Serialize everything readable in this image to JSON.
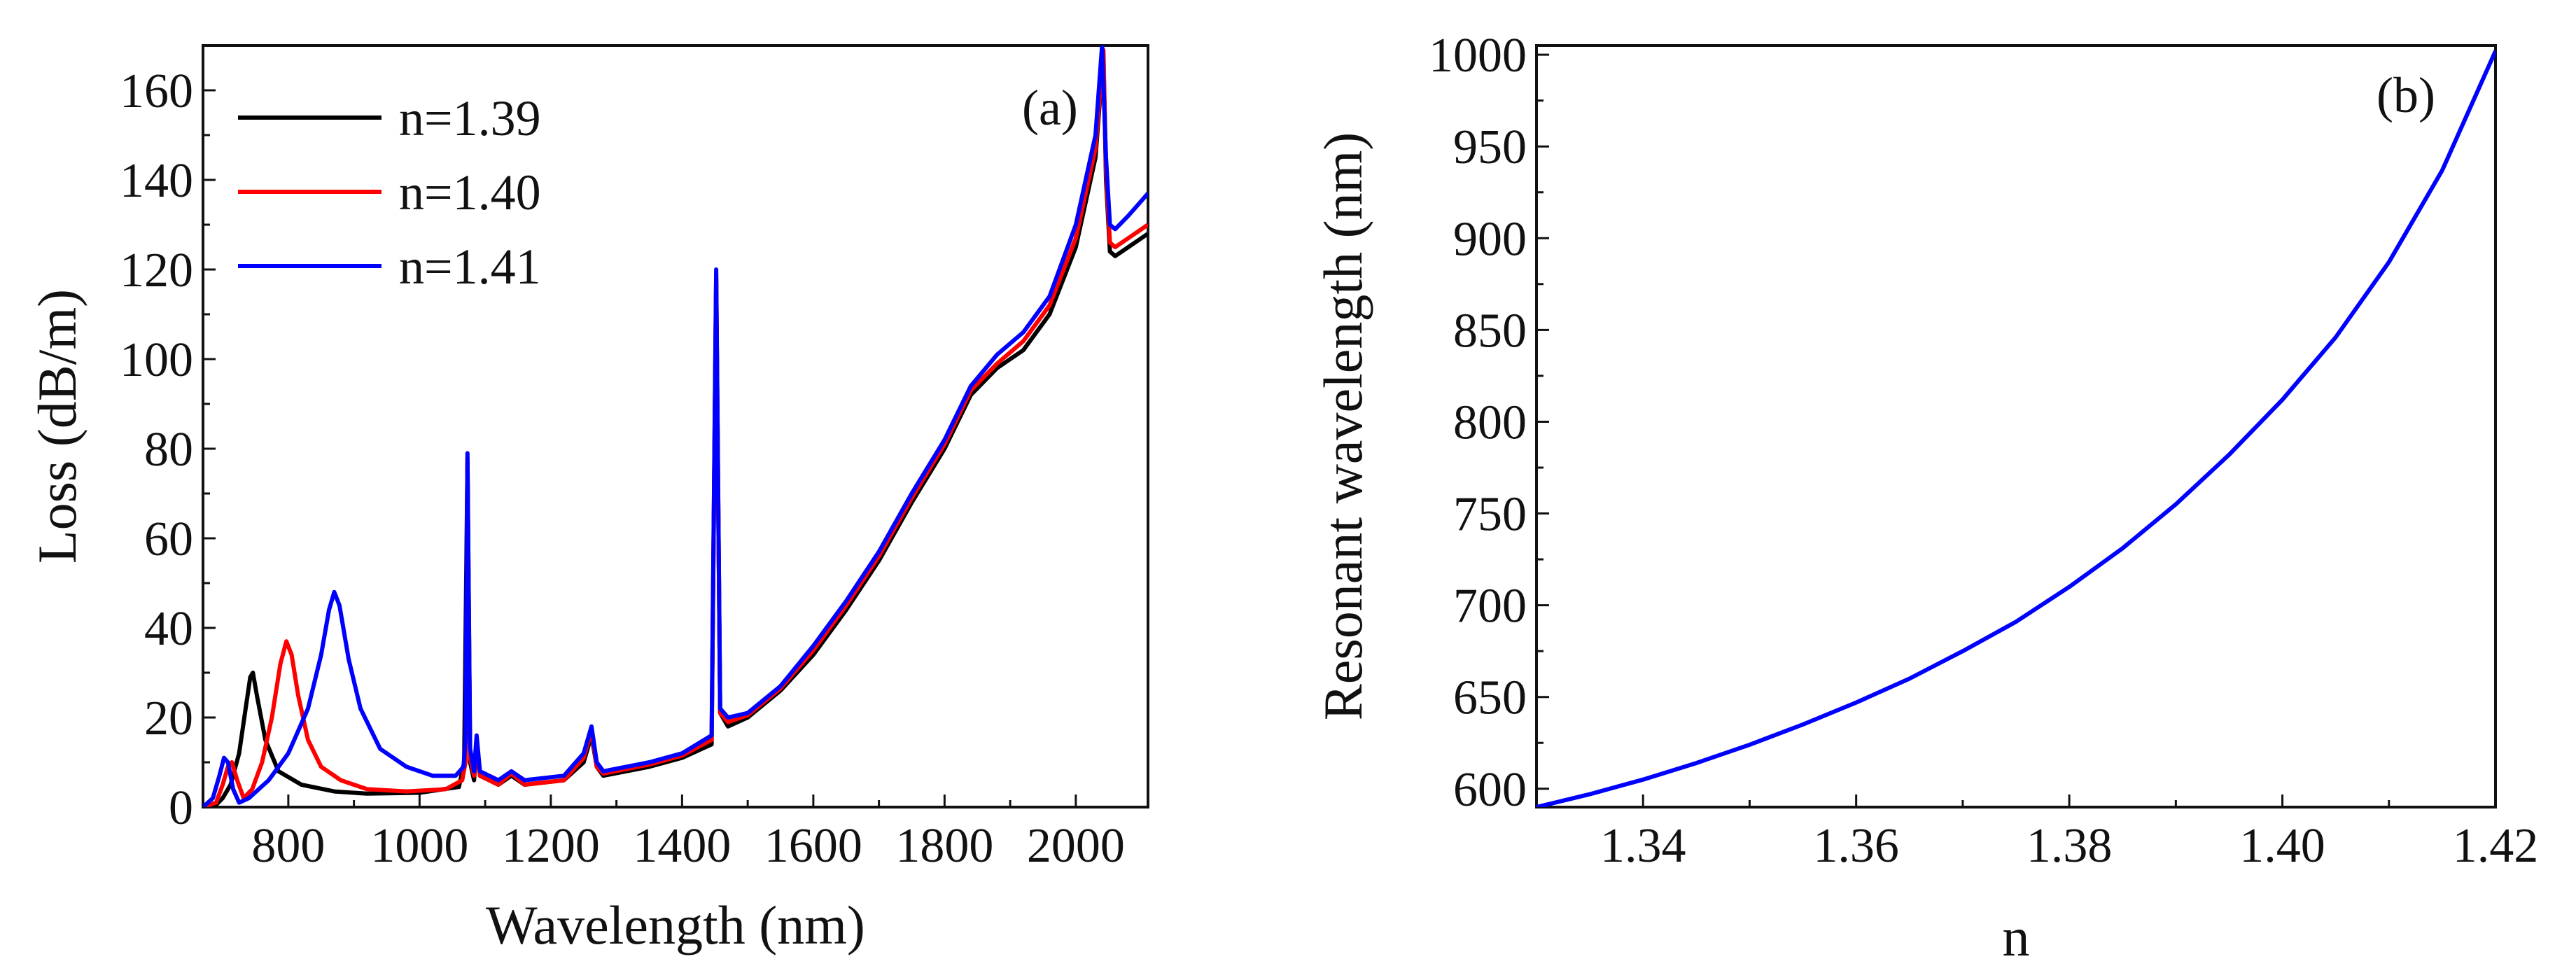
{
  "chart_data": [
    {
      "panel": "(a)",
      "type": "line",
      "xlabel": "Wavelength (nm)",
      "ylabel": "Loss (dB/m)",
      "xlim": [
        670,
        2110
      ],
      "ylim": [
        0,
        170
      ],
      "xticks": [
        800,
        1000,
        1200,
        1400,
        1600,
        1800,
        2000
      ],
      "xtick_labels": [
        "800",
        "1000",
        "1200",
        "1400",
        "1600",
        "1800",
        "2000"
      ],
      "yticks": [
        0,
        20,
        40,
        60,
        80,
        100,
        120,
        140,
        160
      ],
      "ytick_labels": [
        "0",
        "20",
        "40",
        "60",
        "80",
        "100",
        "120",
        "140",
        "160"
      ],
      "grid": false,
      "legend_position": "top-left",
      "series": [
        {
          "name": "n=1.39",
          "color": "#000000",
          "points": [
            [
              670,
              0
            ],
            [
              690,
              0.5
            ],
            [
              700,
              2
            ],
            [
              712,
              5
            ],
            [
              725,
              12
            ],
            [
              735,
              22
            ],
            [
              742,
              29
            ],
            [
              746,
              30
            ],
            [
              752,
              25
            ],
            [
              765,
              15
            ],
            [
              785,
              8
            ],
            [
              820,
              5
            ],
            [
              870,
              3.5
            ],
            [
              920,
              3
            ],
            [
              1000,
              3.2
            ],
            [
              1060,
              4.5
            ],
            [
              1068,
              10
            ],
            [
              1073,
              77
            ],
            [
              1077,
              10
            ],
            [
              1083,
              6
            ],
            [
              1087,
              14
            ],
            [
              1092,
              7
            ],
            [
              1120,
              5
            ],
            [
              1140,
              7
            ],
            [
              1160,
              5
            ],
            [
              1220,
              6
            ],
            [
              1250,
              10
            ],
            [
              1262,
              16
            ],
            [
              1270,
              9
            ],
            [
              1280,
              7
            ],
            [
              1350,
              9
            ],
            [
              1400,
              11
            ],
            [
              1445,
              14
            ],
            [
              1452,
              118
            ],
            [
              1458,
              21
            ],
            [
              1470,
              18
            ],
            [
              1500,
              20
            ],
            [
              1550,
              26
            ],
            [
              1600,
              34
            ],
            [
              1650,
              44
            ],
            [
              1700,
              55
            ],
            [
              1750,
              68
            ],
            [
              1800,
              80
            ],
            [
              1840,
              92
            ],
            [
              1880,
              98
            ],
            [
              1920,
              102
            ],
            [
              1960,
              110
            ],
            [
              2000,
              125
            ],
            [
              2030,
              145
            ],
            [
              2042,
              168
            ],
            [
              2046,
              140
            ],
            [
              2052,
              124
            ],
            [
              2060,
              123
            ],
            [
              2080,
              125
            ],
            [
              2110,
              128
            ]
          ]
        },
        {
          "name": "n=1.40",
          "color": "#ff0000",
          "points": [
            [
              670,
              0
            ],
            [
              690,
              1
            ],
            [
              700,
              5
            ],
            [
              708,
              9
            ],
            [
              714,
              10
            ],
            [
              722,
              6
            ],
            [
              732,
              2
            ],
            [
              745,
              4
            ],
            [
              760,
              10
            ],
            [
              775,
              20
            ],
            [
              788,
              32
            ],
            [
              797,
              37
            ],
            [
              805,
              34
            ],
            [
              815,
              25
            ],
            [
              830,
              15
            ],
            [
              850,
              9
            ],
            [
              880,
              6
            ],
            [
              920,
              4
            ],
            [
              980,
              3.5
            ],
            [
              1040,
              4
            ],
            [
              1065,
              6
            ],
            [
              1070,
              10
            ],
            [
              1073,
              78
            ],
            [
              1077,
              11
            ],
            [
              1083,
              7
            ],
            [
              1087,
              15
            ],
            [
              1092,
              7
            ],
            [
              1120,
              5
            ],
            [
              1140,
              7.5
            ],
            [
              1160,
              5
            ],
            [
              1220,
              6
            ],
            [
              1250,
              11
            ],
            [
              1262,
              17
            ],
            [
              1270,
              9
            ],
            [
              1280,
              7.5
            ],
            [
              1350,
              9.5
            ],
            [
              1400,
              11.5
            ],
            [
              1445,
              15
            ],
            [
              1452,
              119
            ],
            [
              1458,
              21
            ],
            [
              1470,
              19
            ],
            [
              1500,
              20.5
            ],
            [
              1550,
              26.5
            ],
            [
              1600,
              35
            ],
            [
              1650,
              45
            ],
            [
              1700,
              56
            ],
            [
              1750,
              69
            ],
            [
              1800,
              81
            ],
            [
              1840,
              93
            ],
            [
              1880,
              99
            ],
            [
              1920,
              104
            ],
            [
              1960,
              112
            ],
            [
              2000,
              127
            ],
            [
              2030,
              147
            ],
            [
              2042,
              169
            ],
            [
              2046,
              142
            ],
            [
              2052,
              126
            ],
            [
              2060,
              125
            ],
            [
              2080,
              127
            ],
            [
              2110,
              130
            ]
          ]
        },
        {
          "name": "n=1.41",
          "color": "#0000ff",
          "points": [
            [
              670,
              0
            ],
            [
              685,
              2
            ],
            [
              695,
              7
            ],
            [
              702,
              11
            ],
            [
              708,
              10
            ],
            [
              716,
              4
            ],
            [
              725,
              1
            ],
            [
              740,
              2
            ],
            [
              770,
              6
            ],
            [
              800,
              12
            ],
            [
              830,
              22
            ],
            [
              850,
              34
            ],
            [
              862,
              44
            ],
            [
              870,
              48
            ],
            [
              878,
              45
            ],
            [
              892,
              33
            ],
            [
              910,
              22
            ],
            [
              940,
              13
            ],
            [
              980,
              9
            ],
            [
              1020,
              7
            ],
            [
              1055,
              7
            ],
            [
              1067,
              9
            ],
            [
              1070,
              15
            ],
            [
              1073,
              79
            ],
            [
              1077,
              13
            ],
            [
              1083,
              8
            ],
            [
              1087,
              16
            ],
            [
              1092,
              8
            ],
            [
              1120,
              6
            ],
            [
              1140,
              8
            ],
            [
              1160,
              6
            ],
            [
              1220,
              7
            ],
            [
              1250,
              12
            ],
            [
              1262,
              18
            ],
            [
              1270,
              10
            ],
            [
              1280,
              8
            ],
            [
              1350,
              10
            ],
            [
              1400,
              12
            ],
            [
              1445,
              16
            ],
            [
              1452,
              120
            ],
            [
              1458,
              22
            ],
            [
              1470,
              20
            ],
            [
              1500,
              21
            ],
            [
              1550,
              27
            ],
            [
              1600,
              36
            ],
            [
              1650,
              46
            ],
            [
              1700,
              57
            ],
            [
              1750,
              70
            ],
            [
              1800,
              82
            ],
            [
              1840,
              94
            ],
            [
              1880,
              101
            ],
            [
              1920,
              106
            ],
            [
              1960,
              114
            ],
            [
              2000,
              130
            ],
            [
              2030,
              150
            ],
            [
              2040,
              170
            ],
            [
              2046,
              145
            ],
            [
              2052,
              130
            ],
            [
              2060,
              129
            ],
            [
              2080,
              132
            ],
            [
              2110,
              137
            ]
          ]
        }
      ]
    },
    {
      "panel": "(b)",
      "type": "line",
      "xlabel": "n",
      "ylabel": "Resonant wavelength (nm)",
      "xlim": [
        1.33,
        1.42
      ],
      "ylim": [
        590,
        1005
      ],
      "xticks": [
        1.34,
        1.36,
        1.38,
        1.4,
        1.42
      ],
      "xtick_labels": [
        "1.34",
        "1.36",
        "1.38",
        "1.40",
        "1.42"
      ],
      "yticks": [
        600,
        650,
        700,
        750,
        800,
        850,
        900,
        950,
        1000
      ],
      "ytick_labels": [
        "600",
        "650",
        "700",
        "750",
        "800",
        "850",
        "900",
        "950",
        "1000"
      ],
      "grid": false,
      "series": [
        {
          "name": "resonant wavelength",
          "color": "#0000ff",
          "points": [
            [
              1.33,
              590
            ],
            [
              1.335,
              597
            ],
            [
              1.34,
              605
            ],
            [
              1.345,
              614
            ],
            [
              1.35,
              624
            ],
            [
              1.355,
              635
            ],
            [
              1.36,
              647
            ],
            [
              1.365,
              660
            ],
            [
              1.37,
              675
            ],
            [
              1.375,
              691
            ],
            [
              1.38,
              710
            ],
            [
              1.385,
              731
            ],
            [
              1.39,
              755
            ],
            [
              1.395,
              782
            ],
            [
              1.4,
              812
            ],
            [
              1.405,
              846
            ],
            [
              1.41,
              887
            ],
            [
              1.415,
              937
            ],
            [
              1.42,
              1002
            ]
          ]
        }
      ]
    }
  ]
}
